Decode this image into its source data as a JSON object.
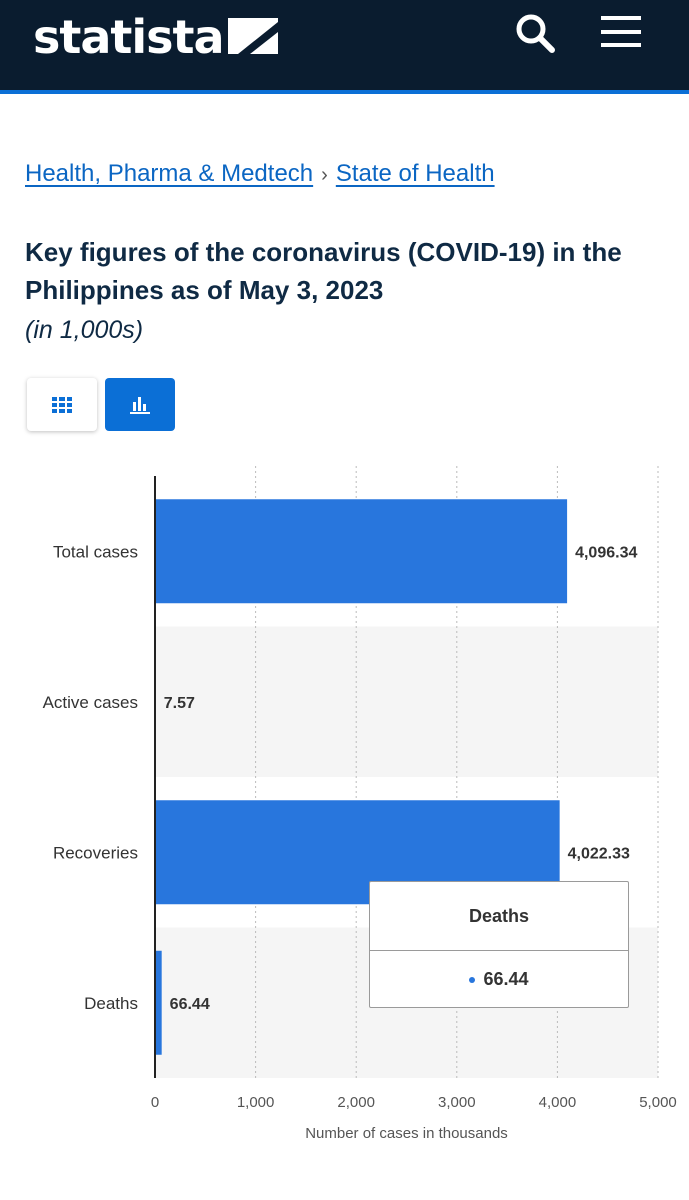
{
  "header": {
    "logo_text": "statista",
    "icons": [
      "search-icon",
      "menu-icon"
    ],
    "colors": {
      "background": "#0a1c2f",
      "accent": "#0b6fd6"
    }
  },
  "breadcrumb": {
    "items": [
      "Health, Pharma & Medtech",
      "State of Health"
    ],
    "separator": "›"
  },
  "page": {
    "title": "Key figures of the coronavirus (COVID-19) in the Philippines as of May 3, 2023",
    "subtitle": "(in 1,000s)"
  },
  "view_toggle": {
    "options": [
      "table-view",
      "chart-view"
    ],
    "active": "chart-view"
  },
  "chart_data": {
    "type": "bar",
    "orientation": "horizontal",
    "categories": [
      "Total cases",
      "Active cases",
      "Recoveries",
      "Deaths"
    ],
    "values": [
      4096.34,
      7.57,
      4022.33,
      66.44
    ],
    "value_labels": [
      "4,096.34",
      "7.57",
      "4,022.33",
      "66.44"
    ],
    "xlabel": "Number of cases in thousands",
    "xlim": [
      0,
      5000
    ],
    "xticks": [
      0,
      1000,
      2000,
      3000,
      4000,
      5000
    ],
    "xtick_labels": [
      "0",
      "1,000",
      "2,000",
      "3,000",
      "4,000",
      "5,000"
    ],
    "grid": "vertical dotted",
    "bar_color": "#2876dd"
  },
  "tooltip": {
    "title": "Deaths",
    "value": "66.44"
  }
}
